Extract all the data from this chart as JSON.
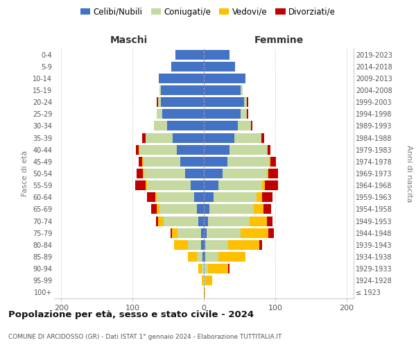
{
  "age_groups": [
    "100+",
    "95-99",
    "90-94",
    "85-89",
    "80-84",
    "75-79",
    "70-74",
    "65-69",
    "60-64",
    "55-59",
    "50-54",
    "45-49",
    "40-44",
    "35-39",
    "30-34",
    "25-29",
    "20-24",
    "15-19",
    "10-14",
    "5-9",
    "0-4"
  ],
  "birth_years": [
    "≤ 1923",
    "1924-1928",
    "1929-1933",
    "1934-1938",
    "1939-1943",
    "1944-1948",
    "1949-1953",
    "1954-1958",
    "1959-1963",
    "1964-1968",
    "1969-1973",
    "1974-1978",
    "1979-1983",
    "1984-1988",
    "1989-1993",
    "1994-1998",
    "1999-2003",
    "2004-2008",
    "2009-2013",
    "2014-2018",
    "2019-2023"
  ],
  "maschi_celibi": [
    0,
    0,
    0,
    2,
    4,
    4,
    8,
    10,
    14,
    18,
    26,
    33,
    38,
    44,
    52,
    58,
    60,
    60,
    63,
    46,
    40
  ],
  "maschi_coniugati": [
    0,
    1,
    3,
    8,
    18,
    33,
    48,
    52,
    52,
    62,
    58,
    52,
    52,
    38,
    18,
    8,
    4,
    2,
    0,
    0,
    0
  ],
  "maschi_vedovi": [
    0,
    2,
    5,
    12,
    20,
    8,
    8,
    4,
    2,
    2,
    2,
    2,
    1,
    0,
    0,
    0,
    0,
    0,
    0,
    0,
    0
  ],
  "maschi_divorziati": [
    0,
    0,
    0,
    0,
    0,
    2,
    3,
    8,
    12,
    14,
    8,
    4,
    4,
    5,
    0,
    0,
    2,
    0,
    0,
    0,
    0
  ],
  "femmine_celibi": [
    0,
    0,
    0,
    2,
    2,
    4,
    6,
    8,
    14,
    20,
    26,
    33,
    36,
    43,
    48,
    52,
    56,
    52,
    58,
    44,
    36
  ],
  "femmine_coniugati": [
    0,
    2,
    6,
    18,
    32,
    48,
    58,
    62,
    60,
    62,
    62,
    58,
    52,
    38,
    18,
    8,
    4,
    2,
    0,
    0,
    0
  ],
  "femmine_vedovi": [
    2,
    10,
    28,
    38,
    44,
    38,
    24,
    14,
    8,
    4,
    2,
    2,
    1,
    0,
    0,
    0,
    0,
    0,
    0,
    0,
    0
  ],
  "femmine_divorziati": [
    0,
    0,
    2,
    0,
    4,
    8,
    8,
    10,
    14,
    18,
    14,
    8,
    4,
    4,
    2,
    2,
    2,
    0,
    0,
    0,
    0
  ],
  "colors": {
    "celibi": "#4472c4",
    "coniugati": "#c5d9a0",
    "vedovi": "#ffc000",
    "divorziati": "#c00000"
  },
  "legend_labels": [
    "Celibi/Nubili",
    "Coniugati/e",
    "Vedovi/e",
    "Divorziati/e"
  ],
  "title": "Popolazione per età, sesso e stato civile - 2024",
  "subtitle": "COMUNE DI ARCIDOSSO (GR) - Dati ISTAT 1° gennaio 2024 - Elaborazione TUTTITALIA.IT",
  "ylabel_left": "Fasce di età",
  "ylabel_right": "Anni di nascita",
  "xlabel_maschi": "Maschi",
  "xlabel_femmine": "Femmine",
  "xlim": 210,
  "background": "#ffffff",
  "grid_color": "#cccccc"
}
